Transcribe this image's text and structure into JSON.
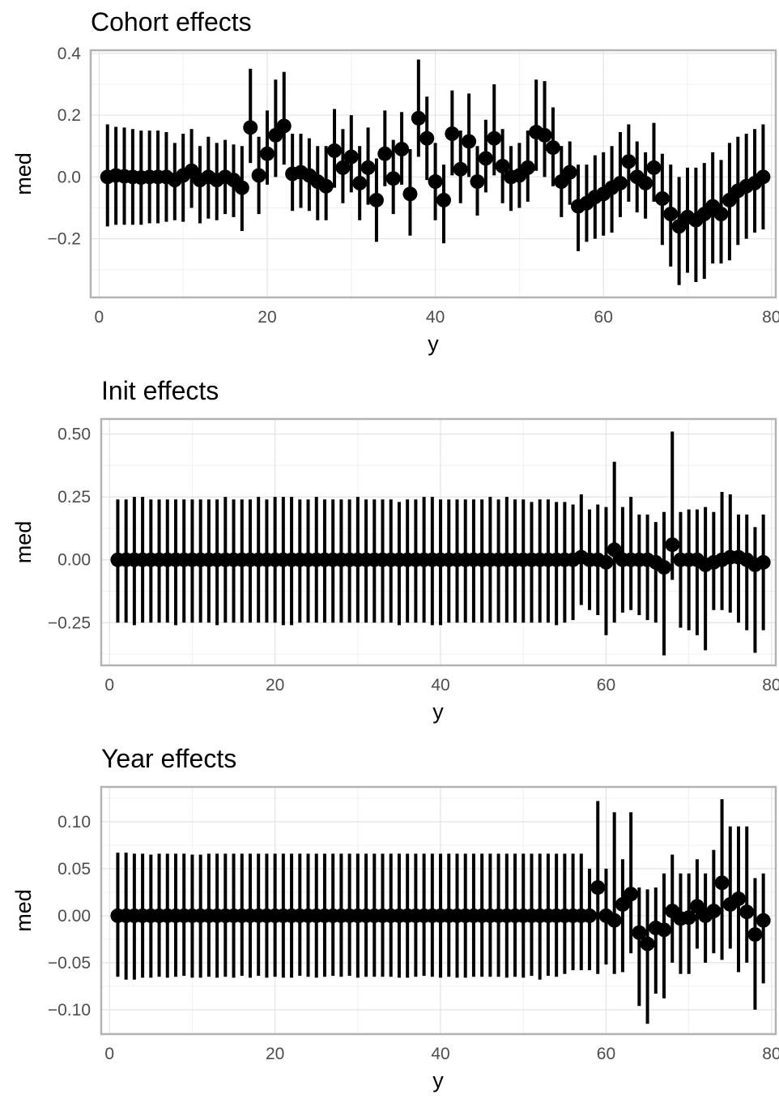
{
  "chart_data": [
    {
      "type": "pointrange",
      "title": "Cohort effects",
      "xlabel": "y",
      "ylabel": "med",
      "xlim": [
        -1.0,
        80.5
      ],
      "ylim": [
        -0.39,
        0.41
      ],
      "xticks": [
        0,
        20,
        40,
        60,
        80
      ],
      "xtick_labels": [
        "0",
        "20",
        "40",
        "60",
        "80"
      ],
      "yticks": [
        -0.2,
        0.0,
        0.2,
        0.4
      ],
      "ytick_labels": [
        "−0.2",
        "0.0",
        "0.2",
        "0.4"
      ],
      "grid": true,
      "x": [
        1,
        2,
        3,
        4,
        5,
        6,
        7,
        8,
        9,
        10,
        11,
        12,
        13,
        14,
        15,
        16,
        17,
        18,
        19,
        20,
        21,
        22,
        23,
        24,
        25,
        26,
        27,
        28,
        29,
        30,
        31,
        32,
        33,
        34,
        35,
        36,
        37,
        38,
        39,
        40,
        41,
        42,
        43,
        44,
        45,
        46,
        47,
        48,
        49,
        50,
        51,
        52,
        53,
        54,
        55,
        56,
        57,
        58,
        59,
        60,
        61,
        62,
        63,
        64,
        65,
        66,
        67,
        68,
        69,
        70,
        71,
        72,
        73,
        74,
        75,
        76,
        77,
        78,
        79
      ],
      "med": [
        0.0,
        0.005,
        0.002,
        0.0,
        -0.002,
        0.0,
        0.0,
        0.0,
        -0.01,
        0.005,
        0.02,
        -0.01,
        0.0,
        -0.01,
        0.0,
        -0.01,
        -0.035,
        0.16,
        0.005,
        0.075,
        0.135,
        0.165,
        0.01,
        0.015,
        0.005,
        -0.015,
        -0.03,
        0.085,
        0.03,
        0.065,
        -0.02,
        0.03,
        -0.075,
        0.075,
        -0.005,
        0.09,
        -0.055,
        0.19,
        0.125,
        -0.015,
        -0.075,
        0.14,
        0.025,
        0.115,
        -0.015,
        0.06,
        0.125,
        0.035,
        0.0,
        0.005,
        0.03,
        0.145,
        0.135,
        0.095,
        -0.015,
        0.015,
        -0.095,
        -0.085,
        -0.065,
        -0.055,
        -0.035,
        -0.02,
        0.05,
        0.0,
        -0.02,
        0.03,
        -0.07,
        -0.12,
        -0.16,
        -0.13,
        -0.14,
        -0.12,
        -0.095,
        -0.12,
        -0.075,
        -0.045,
        -0.03,
        -0.02,
        0.0
      ],
      "lower": [
        -0.16,
        -0.155,
        -0.155,
        -0.155,
        -0.155,
        -0.15,
        -0.15,
        -0.145,
        -0.14,
        -0.145,
        -0.1,
        -0.15,
        -0.135,
        -0.14,
        -0.12,
        -0.13,
        -0.175,
        0.045,
        -0.12,
        -0.025,
        0.0,
        0.04,
        -0.11,
        -0.1,
        -0.11,
        -0.14,
        -0.14,
        -0.035,
        -0.085,
        -0.05,
        -0.14,
        -0.09,
        -0.21,
        -0.03,
        -0.12,
        -0.025,
        -0.19,
        0.065,
        -0.01,
        -0.14,
        -0.215,
        0.005,
        -0.085,
        0.0,
        -0.125,
        -0.05,
        0.005,
        -0.085,
        -0.11,
        -0.1,
        -0.08,
        0.02,
        0.0,
        -0.03,
        -0.13,
        -0.09,
        -0.24,
        -0.21,
        -0.2,
        -0.19,
        -0.18,
        -0.13,
        -0.08,
        -0.115,
        -0.135,
        -0.08,
        -0.22,
        -0.29,
        -0.35,
        -0.31,
        -0.34,
        -0.33,
        -0.28,
        -0.28,
        -0.27,
        -0.22,
        -0.2,
        -0.18,
        -0.17
      ],
      "upper": [
        0.17,
        0.162,
        0.16,
        0.155,
        0.15,
        0.15,
        0.15,
        0.145,
        0.11,
        0.14,
        0.155,
        0.1,
        0.13,
        0.11,
        0.12,
        0.105,
        0.1,
        0.35,
        0.13,
        0.215,
        0.315,
        0.34,
        0.14,
        0.14,
        0.125,
        0.1,
        0.1,
        0.22,
        0.155,
        0.2,
        0.1,
        0.16,
        0.06,
        0.215,
        0.12,
        0.21,
        0.09,
        0.38,
        0.26,
        0.11,
        0.04,
        0.28,
        0.15,
        0.27,
        0.1,
        0.185,
        0.3,
        0.155,
        0.1,
        0.11,
        0.15,
        0.315,
        0.31,
        0.225,
        0.1,
        0.115,
        0.04,
        0.04,
        0.07,
        0.08,
        0.1,
        0.145,
        0.17,
        0.115,
        0.08,
        0.175,
        0.075,
        0.04,
        0.0,
        0.03,
        0.03,
        0.045,
        0.08,
        0.055,
        0.11,
        0.13,
        0.14,
        0.155,
        0.17
      ]
    },
    {
      "type": "pointrange",
      "title": "Init effects",
      "xlabel": "y",
      "ylabel": "med",
      "xlim": [
        -1.0,
        80.5
      ],
      "ylim": [
        -0.42,
        0.56
      ],
      "xticks": [
        0,
        20,
        40,
        60,
        80
      ],
      "xtick_labels": [
        "0",
        "20",
        "40",
        "60",
        "80"
      ],
      "yticks": [
        -0.25,
        0.0,
        0.25,
        0.5
      ],
      "ytick_labels": [
        "−0.25",
        "0.00",
        "0.25",
        "0.50"
      ],
      "grid": true,
      "x": [
        1,
        2,
        3,
        4,
        5,
        6,
        7,
        8,
        9,
        10,
        11,
        12,
        13,
        14,
        15,
        16,
        17,
        18,
        19,
        20,
        21,
        22,
        23,
        24,
        25,
        26,
        27,
        28,
        29,
        30,
        31,
        32,
        33,
        34,
        35,
        36,
        37,
        38,
        39,
        40,
        41,
        42,
        43,
        44,
        45,
        46,
        47,
        48,
        49,
        50,
        51,
        52,
        53,
        54,
        55,
        56,
        57,
        58,
        59,
        60,
        61,
        62,
        63,
        64,
        65,
        66,
        67,
        68,
        69,
        70,
        71,
        72,
        73,
        74,
        75,
        76,
        77,
        78,
        79
      ],
      "med": [
        0.0,
        0.0,
        0.0,
        0.0,
        0.0,
        0.0,
        0.0,
        0.0,
        0.0,
        0.0,
        0.0,
        0.0,
        0.0,
        0.0,
        0.0,
        0.0,
        0.0,
        0.0,
        0.0,
        0.0,
        0.0,
        0.0,
        0.0,
        0.0,
        0.0,
        0.0,
        0.0,
        0.0,
        0.0,
        0.0,
        0.0,
        0.0,
        0.0,
        0.0,
        0.0,
        0.0,
        0.0,
        0.0,
        0.0,
        0.0,
        0.0,
        0.0,
        0.0,
        0.0,
        0.0,
        0.0,
        0.0,
        0.0,
        0.0,
        0.0,
        0.0,
        0.0,
        0.0,
        0.0,
        0.0,
        0.0,
        0.01,
        0.0,
        0.0,
        -0.01,
        0.04,
        0.0,
        0.0,
        0.0,
        0.0,
        -0.01,
        -0.03,
        0.06,
        0.0,
        0.0,
        0.0,
        -0.02,
        -0.01,
        0.0,
        0.01,
        0.01,
        0.0,
        -0.02,
        -0.01
      ],
      "lower": [
        -0.25,
        -0.25,
        -0.26,
        -0.25,
        -0.25,
        -0.25,
        -0.25,
        -0.26,
        -0.25,
        -0.25,
        -0.25,
        -0.25,
        -0.26,
        -0.25,
        -0.25,
        -0.25,
        -0.25,
        -0.25,
        -0.25,
        -0.25,
        -0.26,
        -0.26,
        -0.25,
        -0.25,
        -0.25,
        -0.25,
        -0.25,
        -0.25,
        -0.25,
        -0.25,
        -0.25,
        -0.25,
        -0.25,
        -0.25,
        -0.26,
        -0.25,
        -0.25,
        -0.25,
        -0.26,
        -0.26,
        -0.25,
        -0.25,
        -0.25,
        -0.25,
        -0.25,
        -0.25,
        -0.25,
        -0.25,
        -0.25,
        -0.25,
        -0.25,
        -0.25,
        -0.25,
        -0.26,
        -0.25,
        -0.24,
        -0.18,
        -0.2,
        -0.22,
        -0.3,
        -0.25,
        -0.21,
        -0.2,
        -0.22,
        -0.24,
        -0.25,
        -0.38,
        -0.08,
        -0.27,
        -0.28,
        -0.3,
        -0.36,
        -0.2,
        -0.2,
        -0.21,
        -0.25,
        -0.28,
        -0.37,
        -0.28
      ],
      "upper": [
        0.24,
        0.24,
        0.25,
        0.25,
        0.24,
        0.24,
        0.24,
        0.24,
        0.24,
        0.24,
        0.24,
        0.24,
        0.24,
        0.25,
        0.24,
        0.24,
        0.24,
        0.25,
        0.24,
        0.25,
        0.25,
        0.25,
        0.24,
        0.24,
        0.25,
        0.24,
        0.24,
        0.24,
        0.24,
        0.25,
        0.24,
        0.24,
        0.24,
        0.24,
        0.23,
        0.24,
        0.24,
        0.25,
        0.25,
        0.24,
        0.24,
        0.24,
        0.24,
        0.24,
        0.24,
        0.25,
        0.24,
        0.25,
        0.24,
        0.24,
        0.23,
        0.24,
        0.24,
        0.23,
        0.23,
        0.22,
        0.26,
        0.2,
        0.22,
        0.21,
        0.39,
        0.21,
        0.25,
        0.18,
        0.18,
        0.15,
        0.19,
        0.51,
        0.19,
        0.2,
        0.2,
        0.21,
        0.19,
        0.27,
        0.26,
        0.18,
        0.18,
        0.13,
        0.18
      ]
    },
    {
      "type": "pointrange",
      "title": "Year effects",
      "xlabel": "y",
      "ylabel": "med",
      "xlim": [
        -1.0,
        80.5
      ],
      "ylim": [
        -0.126,
        0.137
      ],
      "xticks": [
        0,
        20,
        40,
        60,
        80
      ],
      "xtick_labels": [
        "0",
        "20",
        "40",
        "60",
        "80"
      ],
      "yticks": [
        -0.1,
        -0.05,
        0.0,
        0.05,
        0.1
      ],
      "ytick_labels": [
        "−0.10",
        "−0.05",
        "0.00",
        "0.05",
        "0.10"
      ],
      "grid": true,
      "x": [
        1,
        2,
        3,
        4,
        5,
        6,
        7,
        8,
        9,
        10,
        11,
        12,
        13,
        14,
        15,
        16,
        17,
        18,
        19,
        20,
        21,
        22,
        23,
        24,
        25,
        26,
        27,
        28,
        29,
        30,
        31,
        32,
        33,
        34,
        35,
        36,
        37,
        38,
        39,
        40,
        41,
        42,
        43,
        44,
        45,
        46,
        47,
        48,
        49,
        50,
        51,
        52,
        53,
        54,
        55,
        56,
        57,
        58,
        59,
        60,
        61,
        62,
        63,
        64,
        65,
        66,
        67,
        68,
        69,
        70,
        71,
        72,
        73,
        74,
        75,
        76,
        77,
        78,
        79
      ],
      "med": [
        0.0,
        0.0,
        0.0,
        0.0,
        0.0,
        0.0,
        0.0,
        0.0,
        0.0,
        0.0,
        0.0,
        0.0,
        0.0,
        0.0,
        0.0,
        0.0,
        0.0,
        0.0,
        0.0,
        0.0,
        0.0,
        0.0,
        0.0,
        0.0,
        0.0,
        0.0,
        0.0,
        0.0,
        0.0,
        0.0,
        0.0,
        0.0,
        0.0,
        0.0,
        0.0,
        0.0,
        0.0,
        0.0,
        0.0,
        0.0,
        0.0,
        0.0,
        0.0,
        0.0,
        0.0,
        0.0,
        0.0,
        0.0,
        0.0,
        0.0,
        0.0,
        0.0,
        0.0,
        0.0,
        0.0,
        0.0,
        0.0,
        0.0,
        0.03,
        0.0,
        -0.005,
        0.012,
        0.023,
        -0.018,
        -0.03,
        -0.013,
        -0.015,
        0.005,
        -0.003,
        -0.002,
        0.01,
        0.0,
        0.005,
        0.035,
        0.012,
        0.018,
        0.004,
        -0.02,
        -0.005
      ],
      "lower": [
        -0.065,
        -0.068,
        -0.068,
        -0.066,
        -0.066,
        -0.065,
        -0.066,
        -0.065,
        -0.064,
        -0.066,
        -0.066,
        -0.065,
        -0.066,
        -0.065,
        -0.066,
        -0.064,
        -0.066,
        -0.064,
        -0.066,
        -0.065,
        -0.066,
        -0.066,
        -0.064,
        -0.065,
        -0.066,
        -0.065,
        -0.064,
        -0.065,
        -0.064,
        -0.066,
        -0.065,
        -0.065,
        -0.065,
        -0.065,
        -0.066,
        -0.066,
        -0.065,
        -0.064,
        -0.065,
        -0.066,
        -0.065,
        -0.066,
        -0.066,
        -0.065,
        -0.065,
        -0.065,
        -0.065,
        -0.066,
        -0.065,
        -0.066,
        -0.064,
        -0.068,
        -0.064,
        -0.065,
        -0.062,
        -0.058,
        -0.058,
        -0.058,
        -0.062,
        -0.052,
        -0.062,
        -0.06,
        -0.04,
        -0.096,
        -0.115,
        -0.083,
        -0.088,
        -0.05,
        -0.062,
        -0.062,
        -0.035,
        -0.05,
        -0.04,
        -0.047,
        -0.035,
        -0.06,
        -0.05,
        -0.1,
        -0.072
      ],
      "upper": [
        0.067,
        0.067,
        0.066,
        0.066,
        0.065,
        0.066,
        0.066,
        0.066,
        0.066,
        0.065,
        0.065,
        0.066,
        0.066,
        0.066,
        0.066,
        0.066,
        0.066,
        0.066,
        0.066,
        0.066,
        0.066,
        0.066,
        0.066,
        0.066,
        0.066,
        0.066,
        0.066,
        0.066,
        0.066,
        0.066,
        0.066,
        0.066,
        0.066,
        0.066,
        0.066,
        0.066,
        0.066,
        0.066,
        0.066,
        0.066,
        0.066,
        0.066,
        0.066,
        0.066,
        0.066,
        0.066,
        0.066,
        0.066,
        0.066,
        0.066,
        0.066,
        0.066,
        0.066,
        0.066,
        0.066,
        0.066,
        0.066,
        0.05,
        0.122,
        0.05,
        0.11,
        0.06,
        0.11,
        0.03,
        0.028,
        0.03,
        0.045,
        0.065,
        0.045,
        0.045,
        0.06,
        0.045,
        0.07,
        0.124,
        0.095,
        0.095,
        0.095,
        0.04,
        0.045
      ]
    }
  ]
}
